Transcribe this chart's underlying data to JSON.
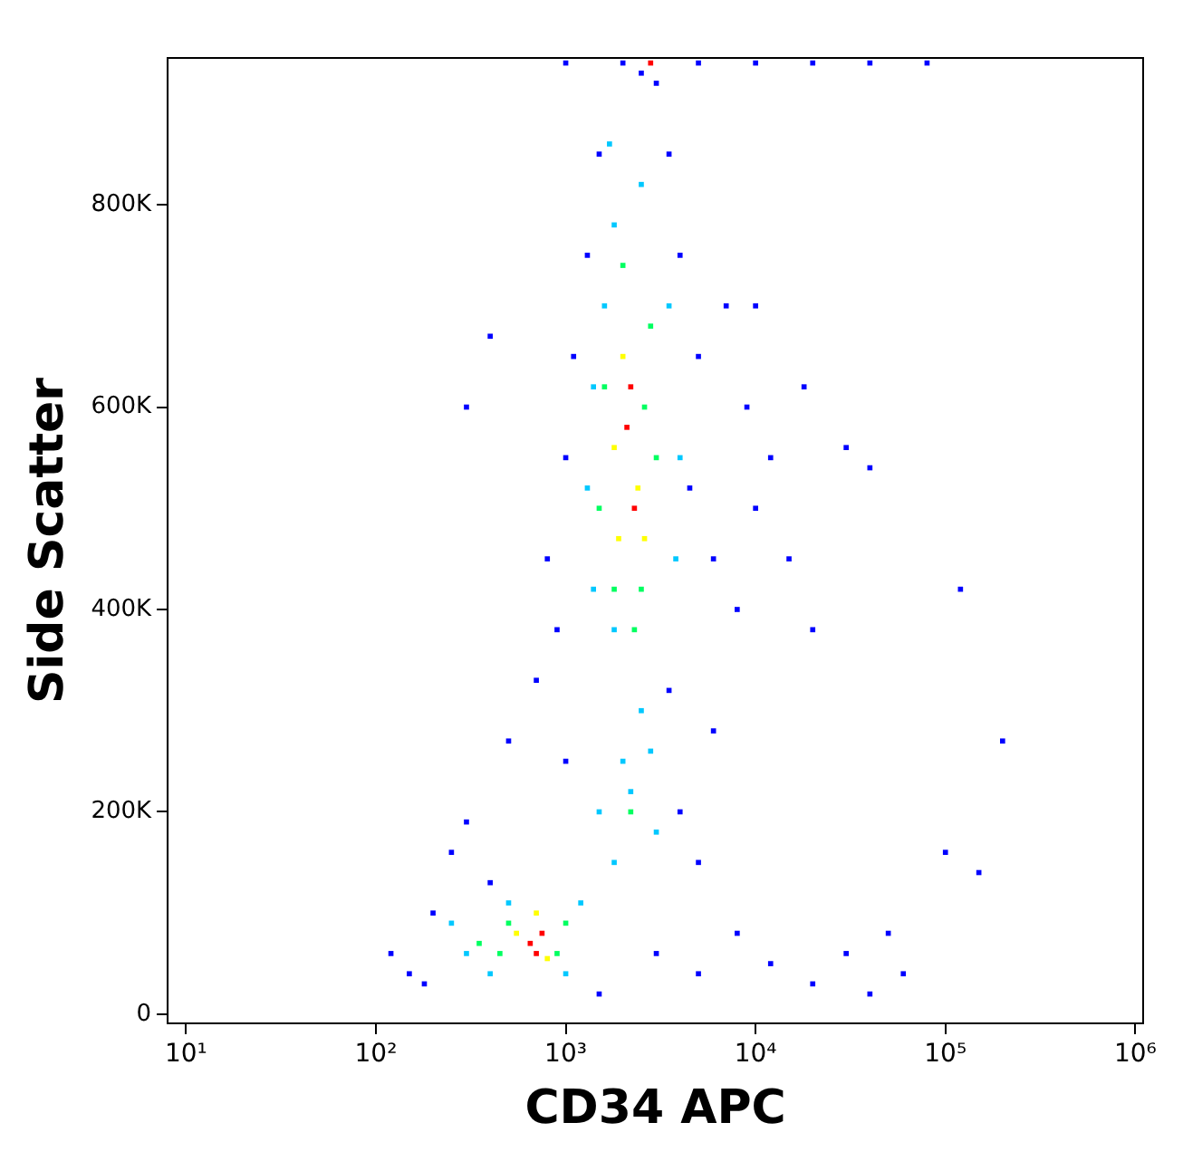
{
  "chart_data": {
    "type": "scatter",
    "xlabel": "CD34 APC",
    "ylabel": "Side Scatter",
    "log": "x",
    "grid": false,
    "legend": false,
    "marker": "square",
    "xlim": [
      8,
      1100000
    ],
    "xticks": [
      {
        "value": 10,
        "label": "10¹"
      },
      {
        "value": 100,
        "label": "10²"
      },
      {
        "value": 1000,
        "label": "10³"
      },
      {
        "value": 10000,
        "label": "10⁴"
      },
      {
        "value": 100000,
        "label": "10⁵"
      },
      {
        "value": 1000000,
        "label": "10⁶"
      }
    ],
    "ylim": [
      -9000,
      945000
    ],
    "yticks": [
      {
        "value": 0,
        "label": "0"
      },
      {
        "value": 200000,
        "label": "200K"
      },
      {
        "value": 400000,
        "label": "400K"
      },
      {
        "value": 600000,
        "label": "600K"
      },
      {
        "value": 800000,
        "label": "800K"
      }
    ],
    "series": [
      {
        "color": "#0000ff",
        "x": [
          120,
          150,
          200,
          250,
          180,
          300,
          400,
          1500,
          3000,
          5000,
          8000,
          12000,
          20000,
          40000,
          60000,
          100000,
          150000,
          30000,
          50000,
          500,
          700,
          1000,
          4000,
          5000,
          6000,
          3500,
          900,
          800,
          1000,
          1100,
          1300,
          1500,
          3500,
          4000,
          5000,
          4500,
          6000,
          8000,
          9000,
          10000,
          12000,
          15000,
          18000,
          20000,
          30000,
          40000,
          120000,
          200000,
          7000,
          10000,
          300,
          400,
          2500,
          3000,
          1000,
          2000,
          5000,
          10000,
          20000,
          40000,
          80000
        ],
        "values": [
          60000,
          40000,
          100000,
          160000,
          30000,
          190000,
          130000,
          20000,
          60000,
          40000,
          80000,
          50000,
          30000,
          20000,
          40000,
          160000,
          140000,
          60000,
          80000,
          270000,
          330000,
          250000,
          200000,
          150000,
          280000,
          320000,
          380000,
          450000,
          550000,
          650000,
          750000,
          850000,
          850000,
          750000,
          650000,
          520000,
          450000,
          400000,
          600000,
          500000,
          550000,
          450000,
          620000,
          380000,
          560000,
          540000,
          420000,
          270000,
          700000,
          700000,
          600000,
          670000,
          930000,
          920000,
          940000,
          940000,
          940000,
          940000,
          940000,
          940000,
          940000
        ]
      },
      {
        "color": "#00c8ff",
        "x": [
          300,
          400,
          1000,
          1200,
          500,
          1500,
          2000,
          3000,
          2500,
          1800,
          1400,
          1300,
          1400,
          1600,
          1800,
          2500,
          3500,
          4000,
          3800,
          1700,
          250,
          1800,
          2200,
          2800
        ],
        "values": [
          60000,
          40000,
          40000,
          110000,
          110000,
          200000,
          250000,
          180000,
          300000,
          380000,
          420000,
          520000,
          620000,
          700000,
          780000,
          820000,
          700000,
          550000,
          450000,
          860000,
          90000,
          150000,
          220000,
          260000
        ]
      },
      {
        "color": "#00ff60",
        "x": [
          450,
          500,
          900,
          1000,
          1800,
          2500,
          1500,
          3000,
          1600,
          2800,
          2000,
          2300,
          2600,
          350,
          2200
        ],
        "values": [
          60000,
          90000,
          60000,
          90000,
          420000,
          420000,
          500000,
          550000,
          620000,
          680000,
          740000,
          380000,
          600000,
          70000,
          200000
        ]
      },
      {
        "color": "#ffff00",
        "x": [
          550,
          800,
          700,
          1900,
          2400,
          2000,
          2600,
          1800
        ],
        "values": [
          80000,
          55000,
          100000,
          470000,
          520000,
          650000,
          470000,
          560000
        ]
      },
      {
        "color": "#ff0000",
        "x": [
          650,
          750,
          700,
          2100,
          2300,
          2200,
          2800
        ],
        "values": [
          70000,
          80000,
          60000,
          580000,
          500000,
          620000,
          940000
        ]
      }
    ]
  }
}
